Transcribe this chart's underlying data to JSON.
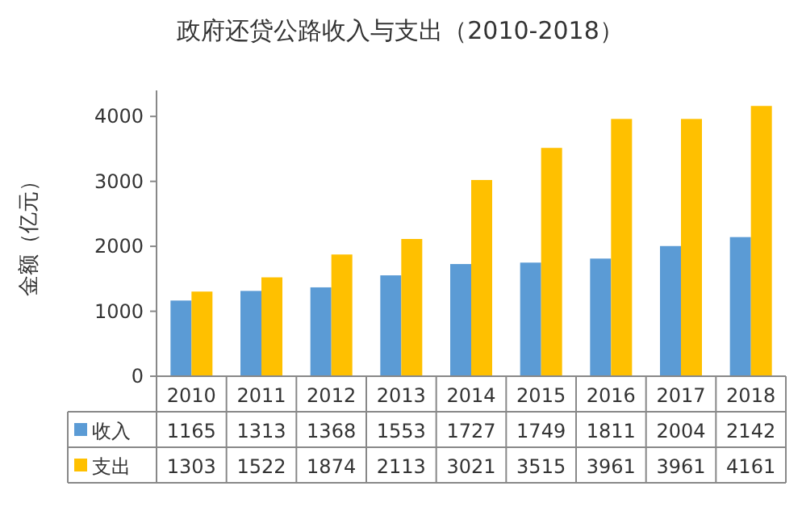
{
  "chart_data": {
    "type": "bar",
    "title": "政府还贷公路收入与支出（2010-2018）",
    "ylabel": "金额（亿元）",
    "categories": [
      "2010",
      "2011",
      "2012",
      "2013",
      "2014",
      "2015",
      "2016",
      "2017",
      "2018"
    ],
    "series": [
      {
        "name": "收入",
        "color": "#5b9bd5",
        "values": [
          1165,
          1313,
          1368,
          1553,
          1727,
          1749,
          1811,
          2004,
          2142
        ]
      },
      {
        "name": "支出",
        "color": "#ffc000",
        "values": [
          1303,
          1522,
          1874,
          2113,
          3021,
          3515,
          3961,
          3961,
          4161
        ]
      }
    ],
    "ylim": [
      0,
      4400
    ],
    "yticks": [
      0,
      1000,
      2000,
      3000,
      4000
    ],
    "data_labels": true,
    "legend": "bottom",
    "grid": false
  }
}
